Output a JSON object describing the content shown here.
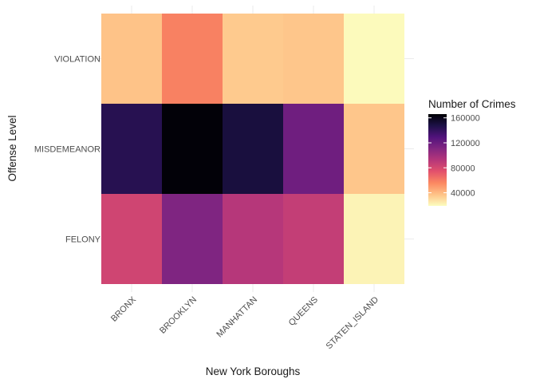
{
  "chart_data": {
    "type": "heatmap",
    "title": "",
    "xlabel": "New York Boroughs",
    "ylabel": "Offense Level",
    "x_categories": [
      "BRONX",
      "BROOKLYN",
      "MANHATTAN",
      "QUEENS",
      "STATEN_ISLAND"
    ],
    "y_categories": [
      "FELONY",
      "MISDEMEANOR",
      "VIOLATION"
    ],
    "values": [
      [
        82000,
        112000,
        92000,
        87000,
        22000
      ],
      [
        144000,
        165000,
        150000,
        118000,
        36000
      ],
      [
        37000,
        58000,
        35000,
        36000,
        20000
      ]
    ],
    "legend": {
      "title": "Number of Crimes",
      "ticks": [
        40000,
        80000,
        120000,
        160000
      ],
      "tick_labels": [
        "40000",
        "80000",
        "120000",
        "160000"
      ],
      "min": 19000,
      "max": 166000,
      "placement": "right"
    },
    "colormap": "magma-reversed",
    "color_stops": [
      "#fcfdbf",
      "#fec287",
      "#fb8861",
      "#e3516c",
      "#b5367a",
      "#822681",
      "#51127c",
      "#1d1147",
      "#000004"
    ],
    "grid": true
  }
}
